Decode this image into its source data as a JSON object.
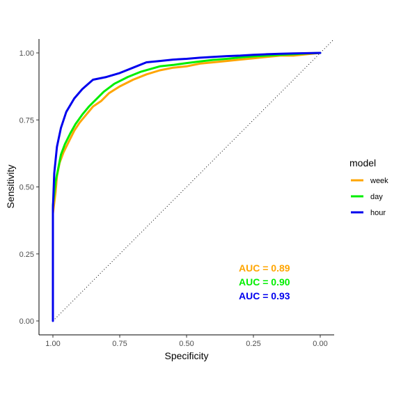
{
  "chart_data": {
    "type": "line",
    "xlabel": "Specificity",
    "ylabel": "Sensitivity",
    "x_reversed": true,
    "xlim": [
      1.0,
      0.0
    ],
    "ylim": [
      0.0,
      1.0
    ],
    "x_ticks": [
      {
        "value": 1.0,
        "label": "1.00"
      },
      {
        "value": 0.75,
        "label": "0.75"
      },
      {
        "value": 0.5,
        "label": "0.50"
      },
      {
        "value": 0.25,
        "label": "0.25"
      },
      {
        "value": 0.0,
        "label": "0.00"
      }
    ],
    "y_ticks": [
      {
        "value": 0.0,
        "label": "0.00"
      },
      {
        "value": 0.25,
        "label": "0.25"
      },
      {
        "value": 0.5,
        "label": "0.50"
      },
      {
        "value": 0.75,
        "label": "0.75"
      },
      {
        "value": 1.0,
        "label": "1.00"
      }
    ],
    "grid": false,
    "legend": {
      "title": "model",
      "position": "right"
    },
    "reference_line": {
      "style": "dotted",
      "from": [
        1.0,
        0.0
      ],
      "to": [
        0.0,
        1.0
      ]
    },
    "series": [
      {
        "name": "week",
        "color": "#FFA500",
        "x": [
          1.0,
          1.0,
          0.99,
          0.985,
          0.975,
          0.96,
          0.94,
          0.92,
          0.9,
          0.875,
          0.85,
          0.82,
          0.79,
          0.75,
          0.7,
          0.65,
          0.6,
          0.55,
          0.5,
          0.45,
          0.4,
          0.35,
          0.3,
          0.25,
          0.2,
          0.15,
          0.1,
          0.05,
          0.0
        ],
        "y": [
          0.22,
          0.4,
          0.48,
          0.54,
          0.59,
          0.63,
          0.67,
          0.71,
          0.74,
          0.77,
          0.8,
          0.82,
          0.85,
          0.875,
          0.9,
          0.92,
          0.935,
          0.945,
          0.95,
          0.96,
          0.965,
          0.97,
          0.975,
          0.98,
          0.985,
          0.99,
          0.99,
          0.995,
          1.0
        ]
      },
      {
        "name": "day",
        "color": "#00EE00",
        "x": [
          1.0,
          1.0,
          0.99,
          0.98,
          0.97,
          0.955,
          0.935,
          0.915,
          0.89,
          0.865,
          0.84,
          0.81,
          0.77,
          0.72,
          0.67,
          0.6,
          0.55,
          0.5,
          0.45,
          0.4,
          0.35,
          0.3,
          0.25,
          0.2,
          0.15,
          0.1,
          0.05,
          0.0
        ],
        "y": [
          0.3,
          0.43,
          0.52,
          0.57,
          0.62,
          0.66,
          0.7,
          0.735,
          0.77,
          0.8,
          0.825,
          0.855,
          0.885,
          0.91,
          0.93,
          0.95,
          0.955,
          0.962,
          0.968,
          0.974,
          0.978,
          0.983,
          0.987,
          0.99,
          0.993,
          0.995,
          0.998,
          1.0
        ]
      },
      {
        "name": "hour",
        "color": "#0000EE",
        "x": [
          1.0,
          1.0,
          0.995,
          0.985,
          0.97,
          0.95,
          0.92,
          0.89,
          0.85,
          0.8,
          0.75,
          0.7,
          0.65,
          0.6,
          0.55,
          0.5,
          0.45,
          0.4,
          0.35,
          0.3,
          0.25,
          0.2,
          0.15,
          0.1,
          0.05,
          0.0
        ],
        "y": [
          0.0,
          0.42,
          0.55,
          0.65,
          0.72,
          0.78,
          0.83,
          0.865,
          0.9,
          0.91,
          0.925,
          0.945,
          0.965,
          0.97,
          0.975,
          0.978,
          0.982,
          0.985,
          0.988,
          0.99,
          0.993,
          0.995,
          0.997,
          0.998,
          0.999,
          1.0
        ]
      }
    ],
    "annotations": [
      {
        "text": "AUC = 0.89",
        "color": "#FFA500"
      },
      {
        "text": "AUC = 0.90",
        "color": "#00EE00"
      },
      {
        "text": "AUC = 0.93",
        "color": "#0000EE"
      }
    ]
  }
}
